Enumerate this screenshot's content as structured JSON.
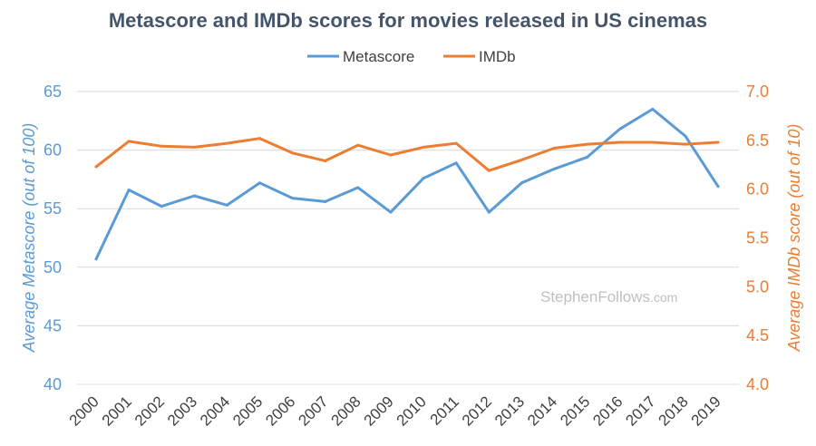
{
  "colors": {
    "metascore": "#5b9bd5",
    "imdb": "#ed7d31",
    "title": "#44546a",
    "grid": "#d9d9d9",
    "watermark": "#bfbfbf"
  },
  "watermark": {
    "main": "StephenFollows",
    "suffix": ".com"
  },
  "chart_data": {
    "type": "line",
    "title": "Metascore and IMDb scores for movies released in US cinemas",
    "categories": [
      "2000",
      "2001",
      "2002",
      "2003",
      "2004",
      "2005",
      "2006",
      "2007",
      "2008",
      "2009",
      "2010",
      "2011",
      "2012",
      "2013",
      "2014",
      "2015",
      "2016",
      "2017",
      "2018",
      "2019"
    ],
    "series": [
      {
        "name": "Metascore",
        "axis": "left",
        "values": [
          50.7,
          56.6,
          55.2,
          56.1,
          55.3,
          57.2,
          55.9,
          55.6,
          56.8,
          54.7,
          57.6,
          58.9,
          54.7,
          57.2,
          58.4,
          59.4,
          61.8,
          63.5,
          61.2,
          56.9
        ]
      },
      {
        "name": "IMDb",
        "axis": "right",
        "values": [
          6.23,
          6.49,
          6.44,
          6.43,
          6.47,
          6.52,
          6.37,
          6.29,
          6.45,
          6.35,
          6.43,
          6.47,
          6.19,
          6.3,
          6.42,
          6.46,
          6.48,
          6.48,
          6.46,
          6.48
        ]
      }
    ],
    "ylabel_left": "Average Metascore (out of 100)",
    "ylabel_right": "Average IMDb score (out of 10)",
    "ylim_left": [
      40,
      65
    ],
    "yticks_left": [
      "40",
      "45",
      "50",
      "55",
      "60",
      "65"
    ],
    "ylim_right": [
      4.0,
      7.0
    ],
    "yticks_right": [
      "4.0",
      "4.5",
      "5.0",
      "5.5",
      "6.0",
      "6.5",
      "7.0"
    ],
    "legend": "top-center",
    "grid": true
  }
}
